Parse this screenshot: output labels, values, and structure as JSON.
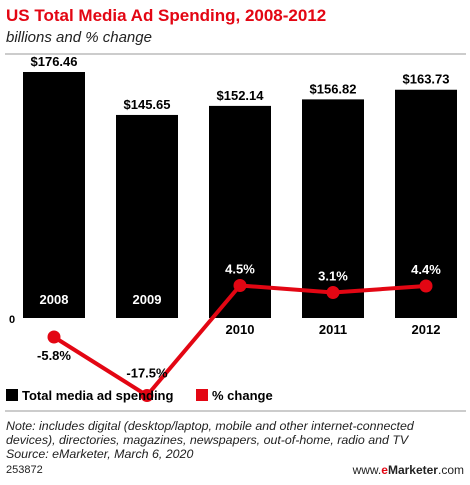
{
  "chart_data": {
    "type": "bar",
    "title": "US Total Media Ad Spending, 2008-2012",
    "subtitle": "billions and % change",
    "categories": [
      "2008",
      "2009",
      "2010",
      "2011",
      "2012"
    ],
    "series": [
      {
        "name": "Total media ad spending",
        "type": "bar",
        "values": [
          176.46,
          145.65,
          152.14,
          156.82,
          163.73
        ],
        "labels": [
          "$176.46",
          "$145.65",
          "$152.14",
          "$156.82",
          "$163.73"
        ]
      },
      {
        "name": "% change",
        "type": "line",
        "values": [
          -5.8,
          -17.5,
          4.5,
          3.1,
          4.4
        ],
        "labels": [
          "-5.8%",
          "-17.5%",
          "4.5%",
          "3.1%",
          "4.4%"
        ]
      }
    ],
    "zero_label": "0",
    "legend_position": "bottom-left",
    "colors": {
      "bar": "#000000",
      "line": "#e30613",
      "title": "#e30613"
    }
  },
  "note": "Note: includes digital (desktop/laptop, mobile and other internet-connected devices), directories, magazines, newspapers, out-of-home, radio and TV",
  "source": "Source: eMarketer, March 6, 2020",
  "chart_id": "253872",
  "brand": {
    "prefix": "www.",
    "accent": "e",
    "main": "Marketer",
    "suffix": ".com"
  }
}
